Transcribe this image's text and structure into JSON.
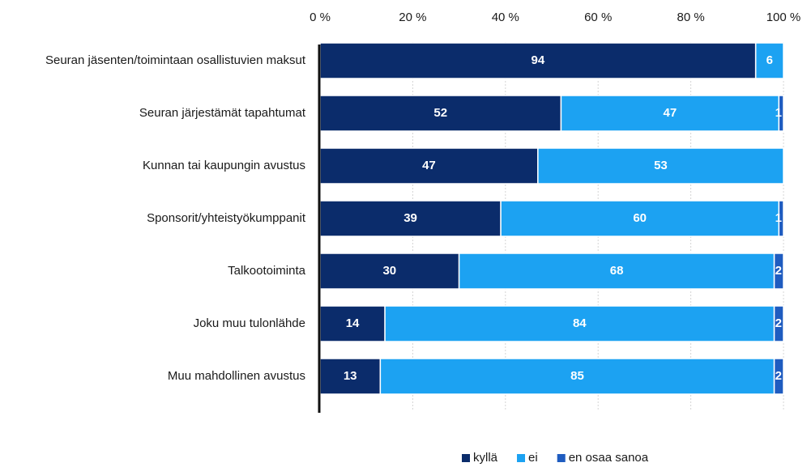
{
  "chart_data": {
    "type": "stacked-barh",
    "categories": [
      "Seuran jäsenten/toimintaan osallistuvien maksut",
      "Seuran järjestämät tapahtumat",
      "Kunnan tai kaupungin avustus",
      "Sponsorit/yhteistyökumppanit",
      "Talkootoiminta",
      "Joku muu tulonlähde",
      "Muu mahdollinen avustus"
    ],
    "series": [
      {
        "name": "kyllä",
        "color": "#0b2c6b",
        "values": [
          94,
          52,
          47,
          39,
          30,
          14,
          13
        ]
      },
      {
        "name": "ei",
        "color": "#1ca2f2",
        "values": [
          6,
          47,
          53,
          60,
          68,
          84,
          85
        ]
      },
      {
        "name": "en osaa sanoa",
        "color": "#1f5cc0",
        "values": [
          null,
          1,
          null,
          1,
          2,
          2,
          2
        ]
      }
    ],
    "xlim": [
      0,
      100
    ],
    "xticks": [
      {
        "value": 0,
        "label": "0 %"
      },
      {
        "value": 20,
        "label": "20 %"
      },
      {
        "value": 40,
        "label": "40 %"
      },
      {
        "value": 60,
        "label": "60 %"
      },
      {
        "value": 80,
        "label": "80 %"
      },
      {
        "value": 100,
        "label": "100 %"
      }
    ],
    "grid": true,
    "legend": "bottom"
  }
}
